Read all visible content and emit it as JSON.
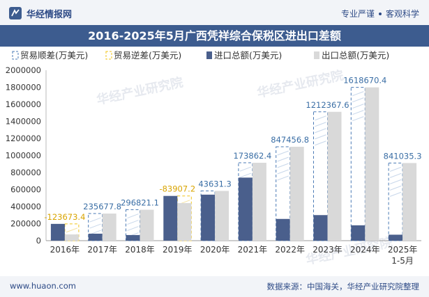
{
  "header": {
    "brand_name": "华经情报网",
    "tag1": "专业严谨",
    "tag2": "客观科学"
  },
  "footer": {
    "website": "www.huaon.com",
    "source": "数据来源：中国海关，华经产业研究院整理"
  },
  "watermark": "华经产业研究院",
  "colors": {
    "import": "#4a5f8c",
    "export": "#d9d9d9",
    "surplus_border": "#4a7ab5",
    "deficit_border": "#f0c419",
    "title_bg": "#3d5c8f"
  },
  "chart_data": {
    "type": "bar",
    "title": "2016-2025年5月广西凭祥综合保税区进出口差额",
    "categories": [
      "2016年",
      "2017年",
      "2018年",
      "2019年",
      "2020年",
      "2021年",
      "2022年",
      "2023年",
      "2024年",
      "2025年\n1-5月"
    ],
    "ylim": [
      0,
      2000000
    ],
    "yticks": [
      0,
      200000,
      400000,
      600000,
      800000,
      1000000,
      1200000,
      1400000,
      1600000,
      1800000,
      2000000
    ],
    "legend": [
      {
        "key": "surplus",
        "label": "贸易顺差(万美元)"
      },
      {
        "key": "deficit",
        "label": "贸易逆差(万美元)"
      },
      {
        "key": "import",
        "label": "进口总额(万美元)"
      },
      {
        "key": "export",
        "label": "出口总额(万美元)"
      }
    ],
    "series": [
      {
        "name": "进口总额(万美元)",
        "key": "import",
        "values": [
          197000,
          82000,
          66000,
          525000,
          540000,
          740000,
          255000,
          300000,
          180000,
          70000
        ]
      },
      {
        "name": "出口总额(万美元)",
        "key": "export",
        "values": [
          73000,
          318000,
          363000,
          441000,
          584000,
          914000,
          1102000,
          1512000,
          1799000,
          911000
        ]
      }
    ],
    "balance": [
      {
        "value": -123673.4,
        "label": "-123673.4"
      },
      {
        "value": 235677.8,
        "label": "235677.8"
      },
      {
        "value": 296821.1,
        "label": "296821.1"
      },
      {
        "value": -83907.2,
        "label": "-83907.2"
      },
      {
        "value": 43631.3,
        "label": "43631.3"
      },
      {
        "value": 173862.4,
        "label": "173862.4"
      },
      {
        "value": 847456.8,
        "label": "847456.8"
      },
      {
        "value": 1212367.6,
        "label": "1212367.6"
      },
      {
        "value": 1618670.4,
        "label": "1618670.4"
      },
      {
        "value": 841035.3,
        "label": "841035.3"
      }
    ]
  }
}
